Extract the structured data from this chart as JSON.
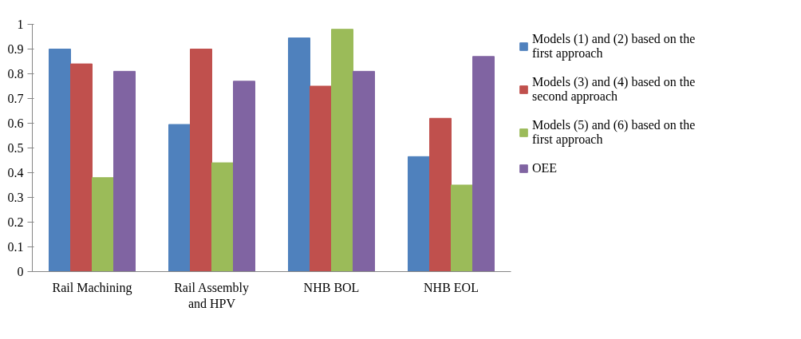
{
  "chart_data": {
    "type": "bar",
    "categories": [
      "Rail Machining",
      "Rail Assembly and HPV",
      "NHB BOL",
      "NHB EOL"
    ],
    "series": [
      {
        "name": "Models (1) and (2) based on the first approach",
        "color": "#4f81bd",
        "values": [
          0.9,
          0.595,
          0.945,
          0.465
        ]
      },
      {
        "name": "Models (3) and (4) based on the second approach",
        "color": "#c0504d",
        "values": [
          0.84,
          0.9,
          0.75,
          0.62
        ]
      },
      {
        "name": "Models (5) and (6) based on the first approach",
        "color": "#9bbb59",
        "values": [
          0.38,
          0.44,
          0.98,
          0.35
        ]
      },
      {
        "name": "OEE",
        "color": "#8064a2",
        "values": [
          0.81,
          0.77,
          0.81,
          0.87
        ]
      }
    ],
    "ylim": [
      0,
      1
    ],
    "yticks": [
      0,
      0.1,
      0.2,
      0.3,
      0.4,
      0.5,
      0.6,
      0.7,
      0.8,
      0.9,
      1
    ],
    "grid": false,
    "legend": "right"
  }
}
